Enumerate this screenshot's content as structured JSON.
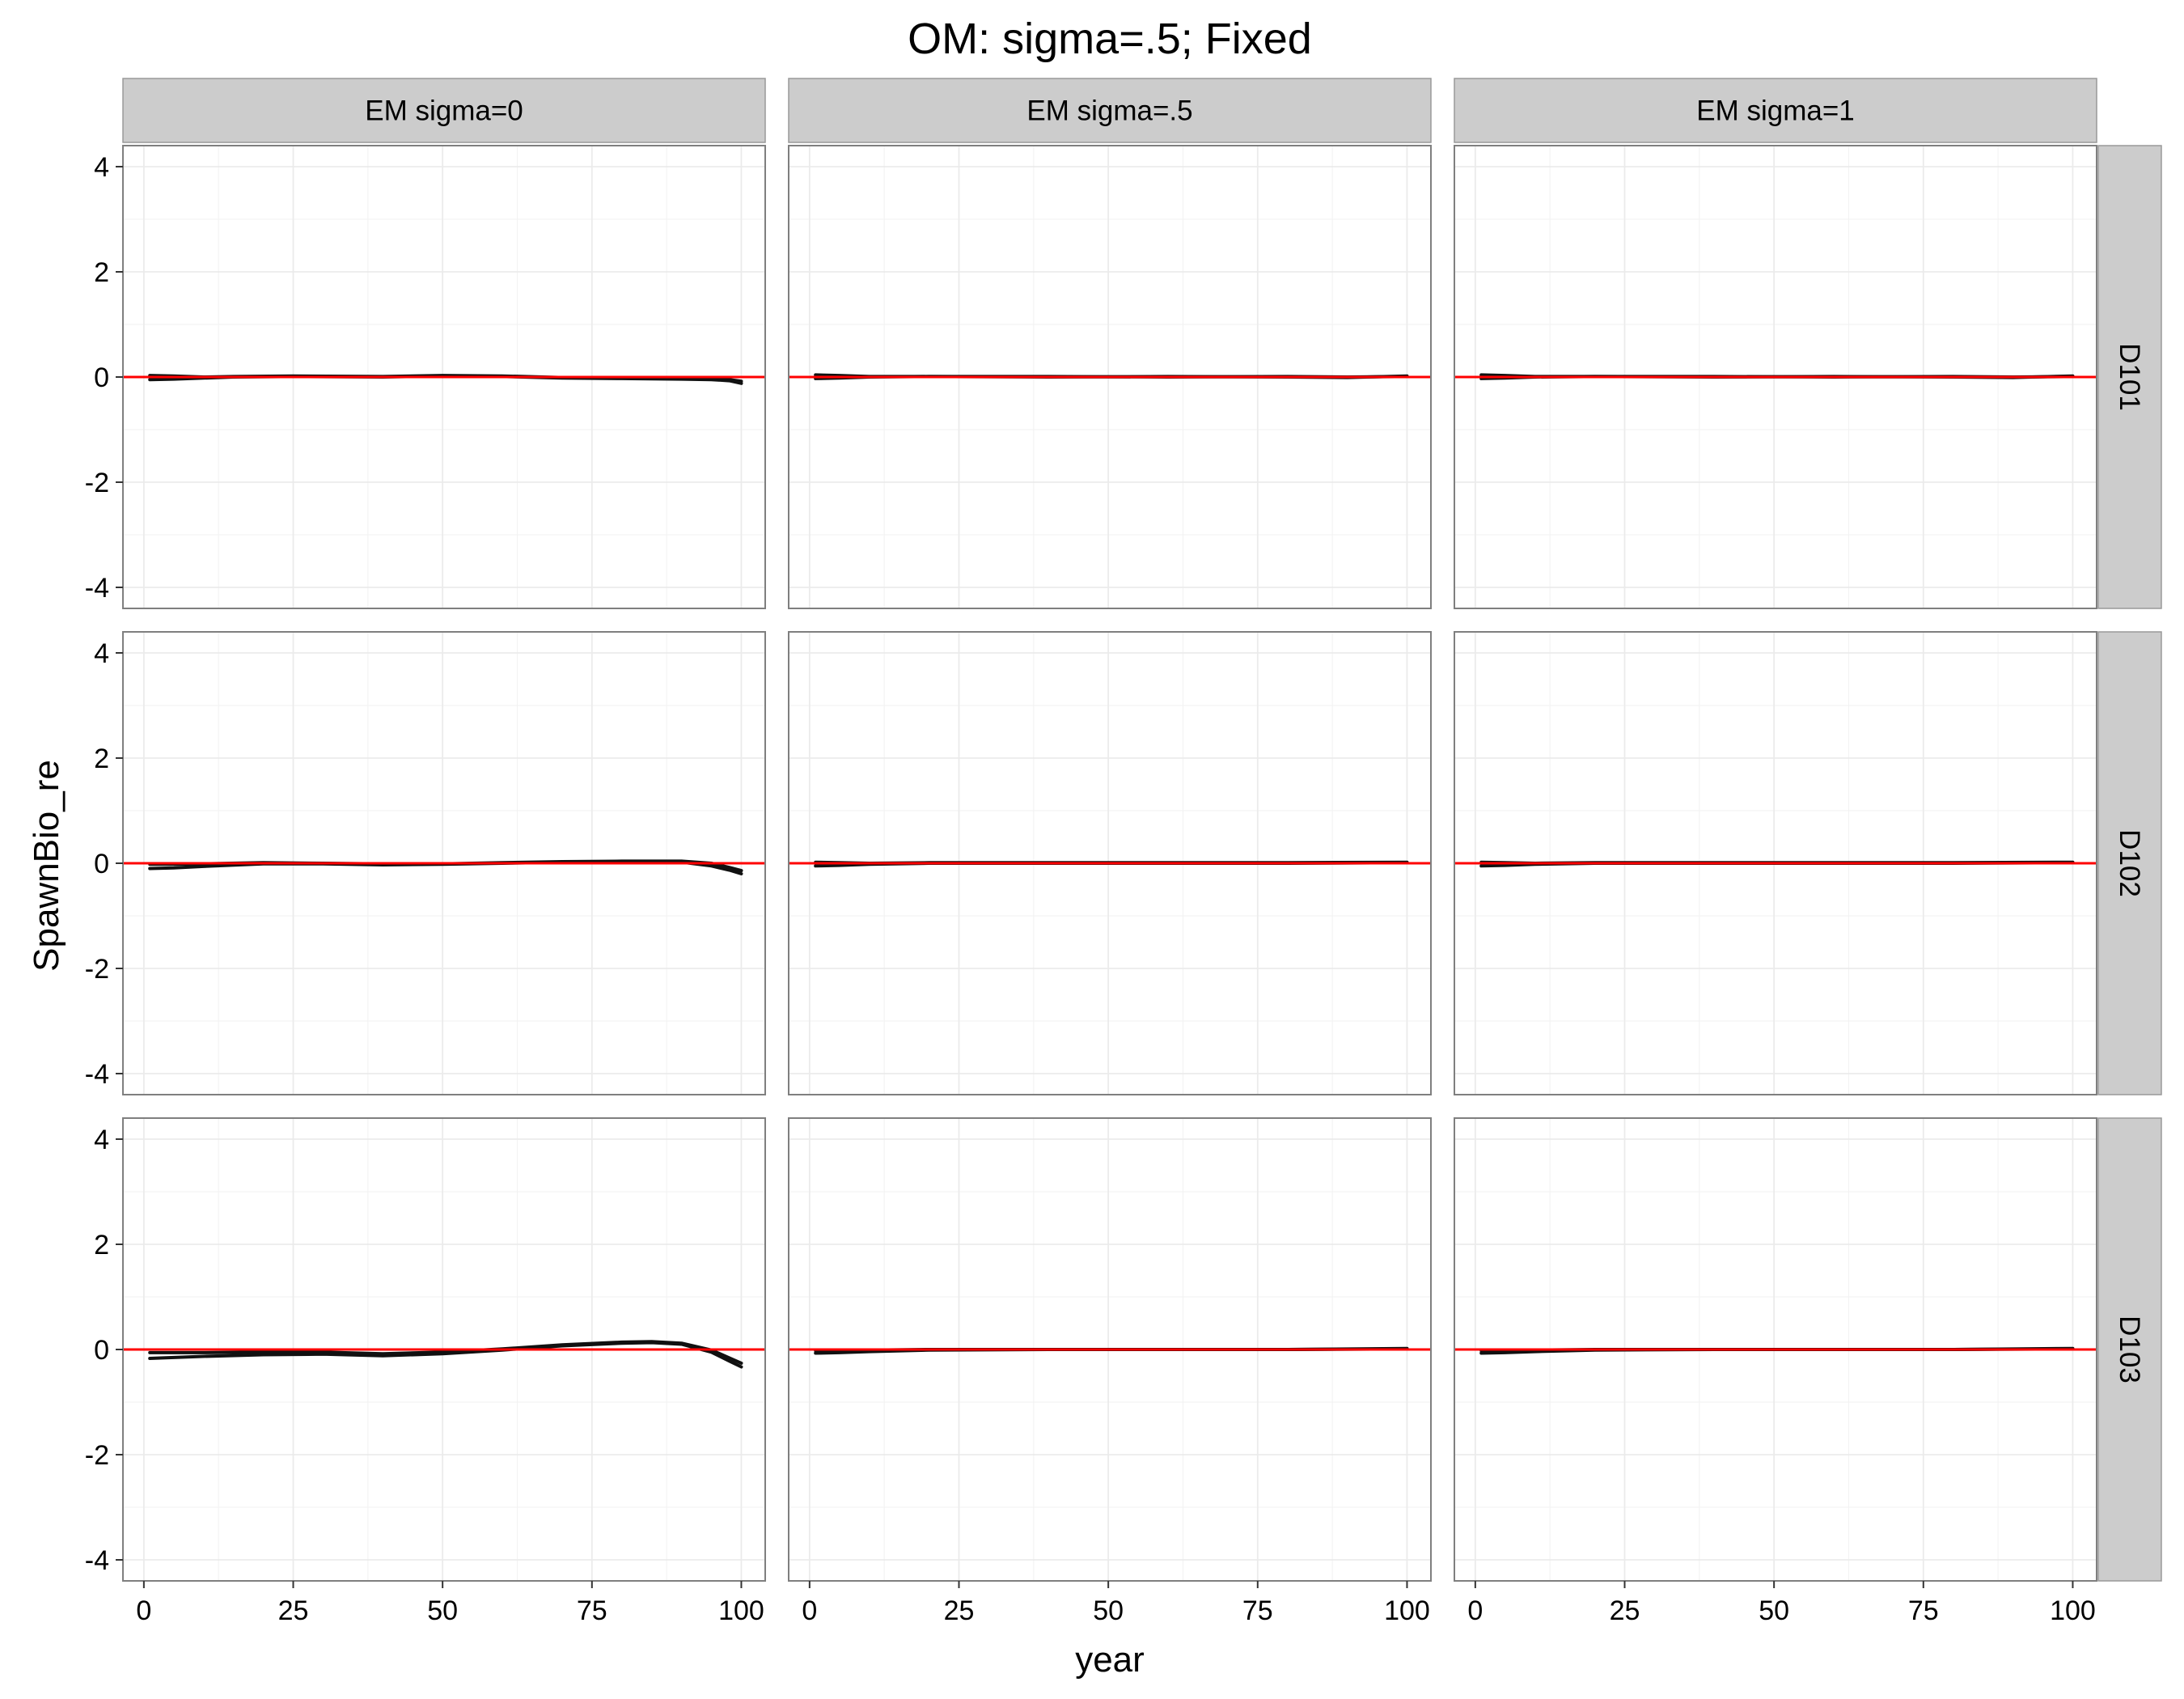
{
  "chart_data": {
    "type": "line",
    "title": "OM: sigma=.5; Fixed",
    "xlabel": "year",
    "ylabel": "SpawnBio_re",
    "xlim": [
      -3.5,
      104
    ],
    "ylim": [
      -4.4,
      4.4
    ],
    "x_ticks": [
      0,
      25,
      50,
      75,
      100
    ],
    "y_ticks": [
      -4,
      -2,
      0,
      2,
      4
    ],
    "grid": true,
    "reference_line": {
      "y": 0,
      "color": "#ff0000"
    },
    "line_color": "#111111",
    "columns": [
      "EM sigma=0",
      "EM sigma=.5",
      "EM sigma=1"
    ],
    "rows": [
      "D101",
      "D102",
      "D103"
    ],
    "panels": [
      {
        "column": "EM sigma=0",
        "row": "D101",
        "series": [
          {
            "x": [
              1,
              5,
              10,
              15,
              25,
              40,
              50,
              60,
              70,
              80,
              90,
              95,
              98,
              100
            ],
            "y": [
              -0.05,
              -0.04,
              -0.02,
              0.0,
              0.01,
              0.0,
              0.02,
              0.01,
              -0.02,
              -0.03,
              -0.04,
              -0.05,
              -0.07,
              -0.12
            ]
          },
          {
            "x": [
              1,
              5,
              10,
              15,
              25,
              40,
              50,
              60,
              70,
              80,
              90,
              95,
              98,
              100
            ],
            "y": [
              0.03,
              0.02,
              0.0,
              0.01,
              0.02,
              0.01,
              0.03,
              0.02,
              -0.01,
              -0.02,
              -0.03,
              -0.04,
              -0.05,
              -0.08
            ]
          }
        ]
      },
      {
        "column": "EM sigma=.5",
        "row": "D101",
        "series": [
          {
            "x": [
              1,
              5,
              10,
              20,
              40,
              60,
              80,
              90,
              100
            ],
            "y": [
              -0.03,
              -0.02,
              0.0,
              0.01,
              0.0,
              0.01,
              0.0,
              -0.01,
              0.02
            ]
          },
          {
            "x": [
              1,
              5,
              10,
              20,
              40,
              60,
              80,
              90,
              100
            ],
            "y": [
              0.04,
              0.03,
              0.01,
              0.01,
              0.01,
              0.0,
              0.01,
              0.0,
              0.01
            ]
          }
        ]
      },
      {
        "column": "EM sigma=1",
        "row": "D101",
        "series": [
          {
            "x": [
              1,
              5,
              10,
              20,
              40,
              60,
              80,
              90,
              100
            ],
            "y": [
              -0.03,
              -0.02,
              0.0,
              0.01,
              0.0,
              0.01,
              0.0,
              -0.01,
              0.02
            ]
          },
          {
            "x": [
              1,
              5,
              10,
              20,
              40,
              60,
              80,
              90,
              100
            ],
            "y": [
              0.04,
              0.03,
              0.01,
              0.01,
              0.01,
              0.0,
              0.01,
              0.0,
              0.01
            ]
          }
        ]
      },
      {
        "column": "EM sigma=0",
        "row": "D102",
        "series": [
          {
            "x": [
              1,
              5,
              10,
              20,
              30,
              40,
              50,
              60,
              70,
              80,
              90,
              95,
              98,
              100
            ],
            "y": [
              -0.1,
              -0.09,
              -0.06,
              -0.01,
              -0.01,
              -0.03,
              -0.02,
              0.0,
              0.02,
              0.03,
              0.02,
              -0.05,
              -0.13,
              -0.2
            ]
          },
          {
            "x": [
              1,
              5,
              10,
              20,
              30,
              40,
              50,
              60,
              70,
              80,
              90,
              95,
              98,
              100
            ],
            "y": [
              -0.02,
              -0.02,
              -0.01,
              0.01,
              0.0,
              -0.01,
              -0.01,
              0.01,
              0.03,
              0.04,
              0.04,
              0.0,
              -0.08,
              -0.14
            ]
          }
        ]
      },
      {
        "column": "EM sigma=.5",
        "row": "D102",
        "series": [
          {
            "x": [
              1,
              5,
              10,
              20,
              40,
              60,
              80,
              100
            ],
            "y": [
              -0.05,
              -0.04,
              -0.02,
              0.0,
              0.0,
              0.0,
              0.0,
              0.01
            ]
          },
          {
            "x": [
              1,
              5,
              10,
              20,
              40,
              60,
              80,
              100
            ],
            "y": [
              0.02,
              0.01,
              0.0,
              0.01,
              0.01,
              0.01,
              0.01,
              0.02
            ]
          }
        ]
      },
      {
        "column": "EM sigma=1",
        "row": "D102",
        "series": [
          {
            "x": [
              1,
              5,
              10,
              20,
              40,
              60,
              80,
              100
            ],
            "y": [
              -0.05,
              -0.04,
              -0.02,
              0.0,
              0.0,
              0.0,
              0.0,
              0.01
            ]
          },
          {
            "x": [
              1,
              5,
              10,
              20,
              40,
              60,
              80,
              100
            ],
            "y": [
              0.02,
              0.01,
              0.0,
              0.01,
              0.01,
              0.01,
              0.01,
              0.02
            ]
          }
        ]
      },
      {
        "column": "EM sigma=0",
        "row": "D103",
        "series": [
          {
            "x": [
              1,
              10,
              20,
              30,
              40,
              50,
              60,
              70,
              80,
              85,
              90,
              95,
              98,
              100
            ],
            "y": [
              -0.17,
              -0.13,
              -0.1,
              -0.09,
              -0.12,
              -0.08,
              -0.01,
              0.07,
              0.12,
              0.13,
              0.1,
              -0.05,
              -0.22,
              -0.33
            ]
          },
          {
            "x": [
              1,
              10,
              20,
              30,
              40,
              50,
              60,
              70,
              80,
              85,
              90,
              95,
              98,
              100
            ],
            "y": [
              -0.06,
              -0.06,
              -0.05,
              -0.05,
              -0.08,
              -0.05,
              0.01,
              0.09,
              0.14,
              0.15,
              0.12,
              -0.01,
              -0.16,
              -0.26
            ]
          }
        ]
      },
      {
        "column": "EM sigma=.5",
        "row": "D103",
        "series": [
          {
            "x": [
              1,
              5,
              10,
              20,
              40,
              60,
              80,
              100
            ],
            "y": [
              -0.07,
              -0.06,
              -0.04,
              -0.01,
              0.0,
              0.0,
              0.0,
              0.01
            ]
          },
          {
            "x": [
              1,
              5,
              10,
              20,
              40,
              60,
              80,
              100
            ],
            "y": [
              -0.02,
              -0.02,
              -0.01,
              0.0,
              0.0,
              0.0,
              0.0,
              0.02
            ]
          }
        ]
      },
      {
        "column": "EM sigma=1",
        "row": "D103",
        "series": [
          {
            "x": [
              1,
              5,
              10,
              20,
              40,
              60,
              80,
              100
            ],
            "y": [
              -0.07,
              -0.06,
              -0.04,
              -0.01,
              0.0,
              0.0,
              0.0,
              0.01
            ]
          },
          {
            "x": [
              1,
              5,
              10,
              20,
              40,
              60,
              80,
              100
            ],
            "y": [
              -0.02,
              -0.02,
              -0.01,
              0.0,
              0.0,
              0.0,
              0.0,
              0.02
            ]
          }
        ]
      }
    ]
  }
}
